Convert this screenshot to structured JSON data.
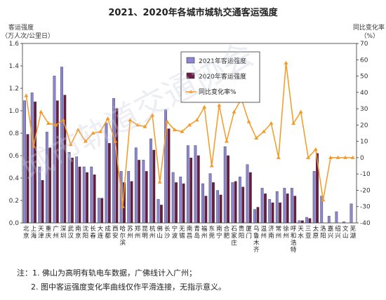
{
  "chart_data": {
    "type": "bar",
    "title": "2021、2020年各城市城轨交通客运强度",
    "ylabel": "客运强度",
    "ylabel_unit": "（万人次/公里日）",
    "y2label": "同比变化率",
    "y2label_unit": "（%）",
    "ylim": [
      0,
      1.6
    ],
    "y_ticks": [
      "0.0",
      "0.2",
      "0.4",
      "0.6",
      "0.8",
      "1.0",
      "1.2",
      "1.4",
      "1.6"
    ],
    "y2lim": [
      -40,
      70
    ],
    "y2_ticks": [
      "-40",
      "-30",
      "-20",
      "-10",
      "0",
      "10",
      "20",
      "30",
      "40",
      "50",
      "60",
      "70"
    ],
    "grid": false,
    "legend_position": "top-center",
    "colors": {
      "s2021": "#8c86d6",
      "s2020": "#6b1a46",
      "line": "#f59a23",
      "bar_stroke": "#333333"
    },
    "categories": [
      "北京",
      "上海",
      "天津",
      "重庆",
      "广州",
      "深圳",
      "武汉",
      "南京",
      "沈阳",
      "长春",
      "大连",
      "成都",
      "西安",
      "哈尔滨",
      "苏州",
      "郑州",
      "昆明",
      "杭州",
      "佛山",
      "长沙",
      "宁波",
      "无锡",
      "南昌",
      "青岛",
      "福州",
      "东莞",
      "南宁",
      "合肥",
      "石家庄",
      "贵阳",
      "厦门",
      "乌鲁木齐",
      "温州",
      "济南",
      "常州",
      "徐州",
      "呼和浩特",
      "天水",
      "三亚",
      "太原",
      "洛阳",
      "嘉兴",
      "绍兴",
      "文山",
      "芜湖"
    ],
    "category_lines": [
      [
        "北",
        "京"
      ],
      [
        "上",
        "海"
      ],
      [
        "天",
        "津"
      ],
      [
        "重",
        "庆"
      ],
      [
        "广",
        "州"
      ],
      [
        "深",
        "圳"
      ],
      [
        "武",
        "汉"
      ],
      [
        "南",
        "京"
      ],
      [
        "沈",
        "阳"
      ],
      [
        "长",
        "春"
      ],
      [
        "大",
        "连"
      ],
      [
        "成",
        "都"
      ],
      [
        "西",
        "安"
      ],
      [
        "哈",
        "尔",
        "滨"
      ],
      [
        "苏",
        "州"
      ],
      [
        "郑",
        "州"
      ],
      [
        "昆",
        "明"
      ],
      [
        "杭",
        "州"
      ],
      [
        "佛",
        "山"
      ],
      [
        "长",
        "沙"
      ],
      [
        "宁",
        "波"
      ],
      [
        "无",
        "锡"
      ],
      [
        "南",
        "昌"
      ],
      [
        "青",
        "岛"
      ],
      [
        "福",
        "州"
      ],
      [
        "东",
        "莞"
      ],
      [
        "南",
        "宁"
      ],
      [
        "合",
        "肥"
      ],
      [
        "石",
        "家",
        "庄"
      ],
      [
        "贵",
        "阳"
      ],
      [
        "厦",
        "门"
      ],
      [
        "乌",
        "鲁",
        "木",
        "齐"
      ],
      [
        "温",
        "州"
      ],
      [
        "济",
        "南"
      ],
      [
        "常",
        "州"
      ],
      [
        "徐",
        "州"
      ],
      [
        "呼",
        "和",
        "浩",
        "特"
      ],
      [
        "天",
        "水"
      ],
      [
        "三",
        "亚"
      ],
      [
        "太",
        "原"
      ],
      [
        "洛",
        "阳"
      ],
      [
        "嘉",
        "兴"
      ],
      [
        "绍",
        "兴"
      ],
      [
        "文",
        "山"
      ],
      [
        "芜",
        "湖"
      ]
    ],
    "series": [
      {
        "name": "2021年客运强度",
        "axis": "left",
        "type": "bar",
        "values": [
          1.09,
          1.16,
          0.5,
          0.81,
          1.31,
          1.39,
          0.63,
          0.59,
          0.5,
          0.5,
          0.22,
          0.89,
          1.11,
          0.46,
          0.46,
          0.67,
          0.56,
          0.75,
          0.21,
          1.01,
          0.45,
          0.41,
          0.69,
          0.69,
          0.35,
          0.44,
          0.29,
          0.68,
          0.36,
          0.41,
          0.52,
          0.12,
          0.31,
          0.21,
          0.28,
          0.31,
          0.31,
          0.02,
          0.05,
          0.46,
          0.24,
          0.06,
          0.1,
          0.01,
          0.17
        ]
      },
      {
        "name": "2020年客运强度",
        "axis": "left",
        "type": "bar",
        "values": [
          0.79,
          1.08,
          0.38,
          0.67,
          1.09,
          1.14,
          0.58,
          0.5,
          0.45,
          0.43,
          0.22,
          0.71,
          1.02,
          0.36,
          0.37,
          0.56,
          0.46,
          0.65,
          0.16,
          0.84,
          0.36,
          0.35,
          0.58,
          0.6,
          0.24,
          0.36,
          0.25,
          0.6,
          0.37,
          0.32,
          0.45,
          0.14,
          0.26,
          0.18,
          0.18,
          0.26,
          0.24,
          0.02,
          0.04,
          0.62,
          0.0,
          0.0,
          0.0,
          0.0,
          0.0
        ]
      },
      {
        "name": "同比变化率%",
        "axis": "right",
        "type": "line",
        "values": [
          38,
          7,
          28,
          21,
          20,
          23,
          8,
          17,
          10,
          15,
          16,
          24,
          10,
          -30,
          23,
          20,
          19,
          26,
          -15,
          22,
          17,
          16,
          20,
          23,
          31,
          -5,
          32,
          10,
          28,
          36,
          22,
          12,
          16,
          21,
          0,
          58,
          21,
          28,
          0,
          5,
          -26,
          0,
          0,
          0,
          0
        ]
      }
    ]
  },
  "watermark": "城市轨道交通协会",
  "notes": [
    "注：1. 佛山为高明有轨电车数据，广佛线计入广州；",
    "2. 图中客运强度变化率曲线仅作平滑连接，无指示意义。"
  ]
}
